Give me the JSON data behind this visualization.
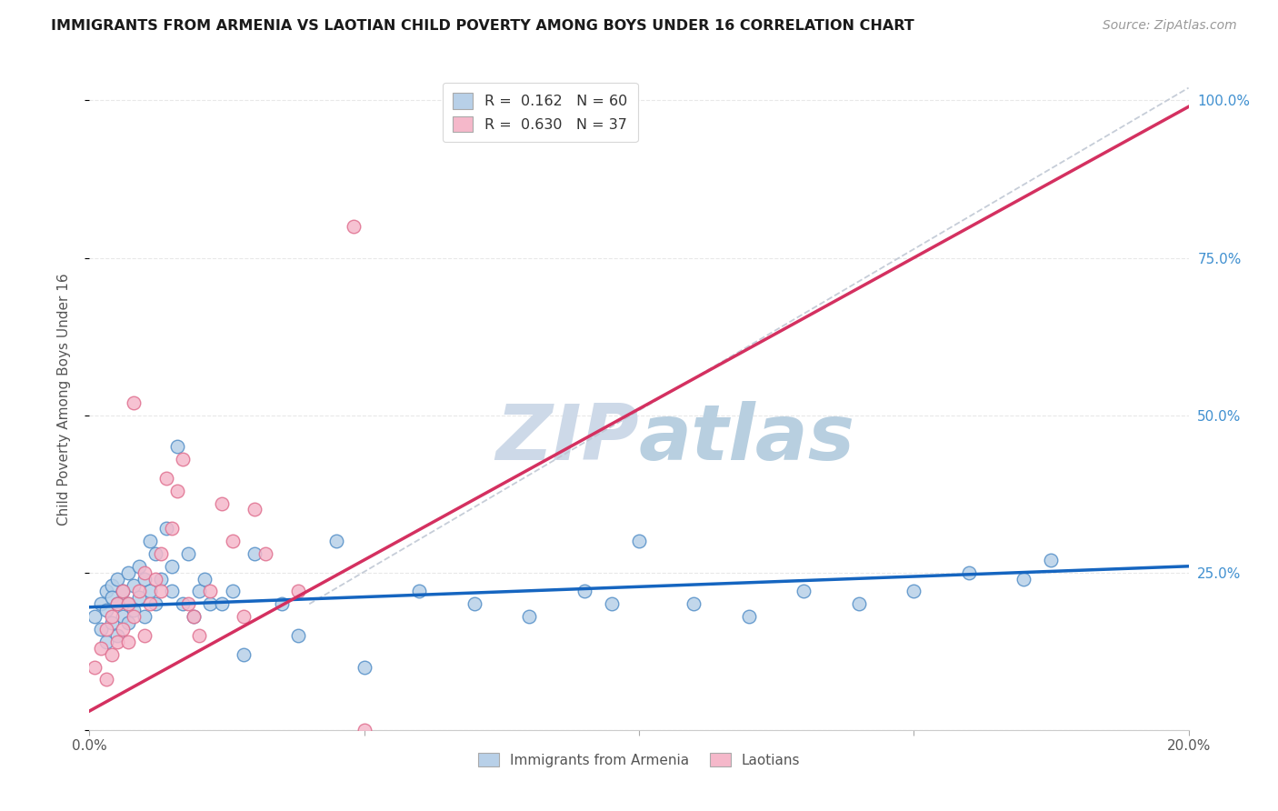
{
  "title": "IMMIGRANTS FROM ARMENIA VS LAOTIAN CHILD POVERTY AMONG BOYS UNDER 16 CORRELATION CHART",
  "source": "Source: ZipAtlas.com",
  "ylabel": "Child Poverty Among Boys Under 16",
  "xlim": [
    0.0,
    0.2
  ],
  "ylim": [
    0.0,
    1.05
  ],
  "r1": 0.162,
  "n1": 60,
  "r2": 0.63,
  "n2": 37,
  "color_blue_fill": "#b8d0e8",
  "color_blue_edge": "#5590c8",
  "color_pink_fill": "#f5b8ca",
  "color_pink_edge": "#e07090",
  "line_blue": "#1565c0",
  "line_pink": "#d43060",
  "diag_color": "#c0c8d4",
  "watermark_color": "#cdd9e5",
  "grid_color": "#e8e8e8",
  "tick_color": "#4090d0",
  "blue_x": [
    0.001,
    0.002,
    0.002,
    0.003,
    0.003,
    0.003,
    0.004,
    0.004,
    0.004,
    0.005,
    0.005,
    0.005,
    0.006,
    0.006,
    0.007,
    0.007,
    0.007,
    0.008,
    0.008,
    0.009,
    0.009,
    0.01,
    0.01,
    0.011,
    0.011,
    0.012,
    0.012,
    0.013,
    0.014,
    0.015,
    0.015,
    0.016,
    0.017,
    0.018,
    0.019,
    0.02,
    0.021,
    0.022,
    0.024,
    0.026,
    0.028,
    0.03,
    0.035,
    0.038,
    0.045,
    0.05,
    0.06,
    0.07,
    0.08,
    0.09,
    0.095,
    0.1,
    0.11,
    0.12,
    0.13,
    0.14,
    0.15,
    0.16,
    0.17,
    0.175
  ],
  "blue_y": [
    0.18,
    0.2,
    0.16,
    0.14,
    0.22,
    0.19,
    0.17,
    0.23,
    0.21,
    0.15,
    0.2,
    0.24,
    0.18,
    0.22,
    0.17,
    0.25,
    0.2,
    0.19,
    0.23,
    0.21,
    0.26,
    0.18,
    0.24,
    0.22,
    0.3,
    0.2,
    0.28,
    0.24,
    0.32,
    0.22,
    0.26,
    0.45,
    0.2,
    0.28,
    0.18,
    0.22,
    0.24,
    0.2,
    0.2,
    0.22,
    0.12,
    0.28,
    0.2,
    0.15,
    0.3,
    0.1,
    0.22,
    0.2,
    0.18,
    0.22,
    0.2,
    0.3,
    0.2,
    0.18,
    0.22,
    0.2,
    0.22,
    0.25,
    0.24,
    0.27
  ],
  "pink_x": [
    0.001,
    0.002,
    0.003,
    0.003,
    0.004,
    0.004,
    0.005,
    0.005,
    0.006,
    0.006,
    0.007,
    0.007,
    0.008,
    0.008,
    0.009,
    0.01,
    0.01,
    0.011,
    0.012,
    0.013,
    0.013,
    0.014,
    0.015,
    0.016,
    0.017,
    0.018,
    0.019,
    0.02,
    0.022,
    0.024,
    0.026,
    0.028,
    0.03,
    0.032,
    0.038,
    0.048,
    0.05
  ],
  "pink_y": [
    0.1,
    0.13,
    0.08,
    0.16,
    0.12,
    0.18,
    0.14,
    0.2,
    0.16,
    0.22,
    0.14,
    0.2,
    0.52,
    0.18,
    0.22,
    0.15,
    0.25,
    0.2,
    0.24,
    0.22,
    0.28,
    0.4,
    0.32,
    0.38,
    0.43,
    0.2,
    0.18,
    0.15,
    0.22,
    0.36,
    0.3,
    0.18,
    0.35,
    0.28,
    0.22,
    0.8,
    0.0
  ]
}
